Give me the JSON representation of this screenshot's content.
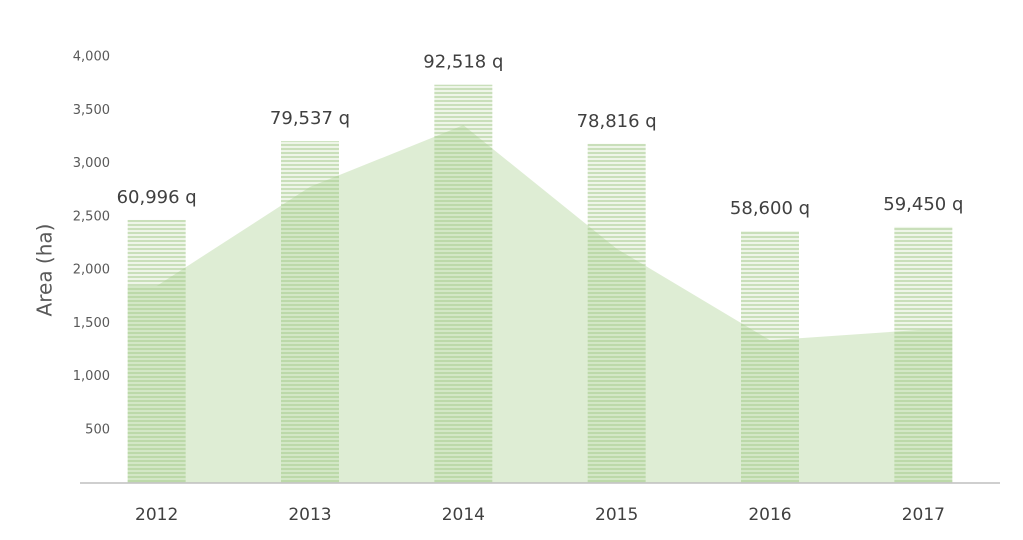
{
  "chart_data": {
    "type": "bar_area",
    "y_axis_label": "Area (ha)",
    "categories": [
      "2012",
      "2013",
      "2014",
      "2015",
      "2016",
      "2017"
    ],
    "bars": {
      "color": "#c9dfba",
      "values": [
        2470,
        3210,
        3740,
        3185,
        2365,
        2405
      ]
    },
    "area": {
      "color": "#a9d08e",
      "values": [
        1850,
        2780,
        3360,
        2200,
        1340,
        1440
      ]
    },
    "labels": {
      "values": [
        60996,
        79537,
        92518,
        78816,
        58600,
        59450
      ],
      "value_labels": [
        "60,996 q",
        "79,537 q",
        "92,518 q",
        "78,816 q",
        "58,600 q",
        "59,450 q"
      ]
    },
    "ylim": [
      0,
      4000
    ],
    "yticks": [
      500,
      {
        "value": 1000,
        "label": "1,000"
      },
      {
        "value": 1500,
        "label": "1,500"
      },
      {
        "value": 2000,
        "label": "2,000"
      },
      {
        "value": 2500,
        "label": "2,500"
      },
      {
        "value": 3000,
        "label": "3,000"
      },
      {
        "value": 3500,
        "label": "3,500"
      },
      {
        "value": 4000,
        "label": "4,000"
      }
    ]
  }
}
